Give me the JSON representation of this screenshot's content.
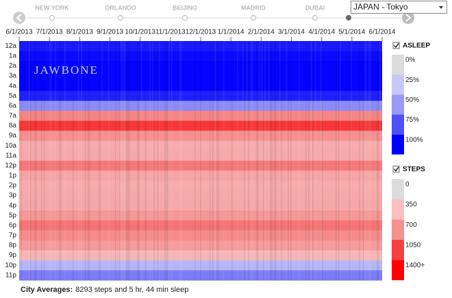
{
  "nav": {
    "cities": [
      "NEW YORK",
      "ORLANDO",
      "BEIJING",
      "MADRID",
      "DUBAI"
    ],
    "select": "JAPAN - Tokyo"
  },
  "heatmap": {
    "dates": [
      "6/1/2013",
      "7/1/2013",
      "8/1/2013",
      "9/1/2013",
      "10/1/2013",
      "11/1/2013",
      "12/1/2013",
      "1/1/2014",
      "2/1/2014",
      "3/1/2014",
      "4/1/2014",
      "5/1/2014",
      "6/1/2014"
    ],
    "hours": [
      "12a",
      "1a",
      "2a",
      "3a",
      "4a",
      "5a",
      "6a",
      "7a",
      "8a",
      "9a",
      "10a",
      "11a",
      "12p",
      "1p",
      "2p",
      "3p",
      "4p",
      "5p",
      "6p",
      "7p",
      "8p",
      "9p",
      "10p",
      "11p"
    ],
    "asleep": [
      92,
      97,
      99,
      99,
      99,
      90,
      55,
      null,
      null,
      null,
      null,
      null,
      null,
      null,
      null,
      null,
      null,
      null,
      null,
      null,
      null,
      null,
      35,
      60
    ],
    "steps": [
      null,
      null,
      null,
      null,
      null,
      null,
      null,
      750,
      1100,
      700,
      500,
      520,
      800,
      550,
      500,
      520,
      530,
      650,
      820,
      720,
      620,
      420,
      null,
      null
    ],
    "watermark": "JAWBONE"
  },
  "legend": {
    "asleep": {
      "title": "ASLEEP",
      "ticks": [
        {
          "value": 0,
          "label": "0%"
        },
        {
          "value": 25,
          "label": "25%"
        },
        {
          "value": 50,
          "label": "50%"
        },
        {
          "value": 75,
          "label": "75%"
        },
        {
          "value": 100,
          "label": "100%"
        }
      ],
      "colors": [
        "#dcdcdc",
        "#c8c8f8",
        "#9a9af5",
        "#5050f8",
        "#0000ff"
      ]
    },
    "steps": {
      "title": "STEPS",
      "ticks": [
        0,
        350,
        700,
        1050,
        {
          "value": 1400,
          "label": "1400+"
        }
      ],
      "colors": [
        "#dcdcdc",
        "#f8c0c0",
        "#f59090",
        "#f54040",
        "#ff0000"
      ]
    }
  },
  "footer": {
    "label": "City Averages:",
    "text": "8293 steps and 5 hr, 44 min sleep"
  }
}
